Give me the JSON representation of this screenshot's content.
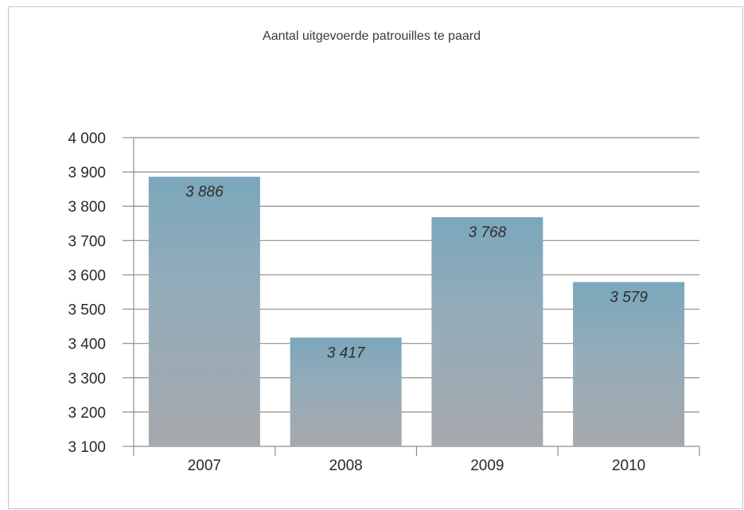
{
  "chart_data": {
    "type": "bar",
    "title": "Aantal uitgevoerde patrouilles te paard",
    "categories": [
      "2007",
      "2008",
      "2009",
      "2010"
    ],
    "values": [
      3886,
      3417,
      3768,
      3579
    ],
    "data_labels": [
      "3 886",
      "3 417",
      "3 768",
      "3 579"
    ],
    "ylim": [
      3100,
      4000
    ],
    "yticks": [
      3100,
      3200,
      3300,
      3400,
      3500,
      3600,
      3700,
      3800,
      3900,
      4000
    ],
    "ytick_labels": [
      "3 100",
      "3 200",
      "3 300",
      "3 400",
      "3 500",
      "3 600",
      "3 700",
      "3 800",
      "3 900",
      "4 000"
    ],
    "grid": true,
    "bar_color_top": "#7ba7bb",
    "bar_color_bottom": "#a6a9ad"
  }
}
